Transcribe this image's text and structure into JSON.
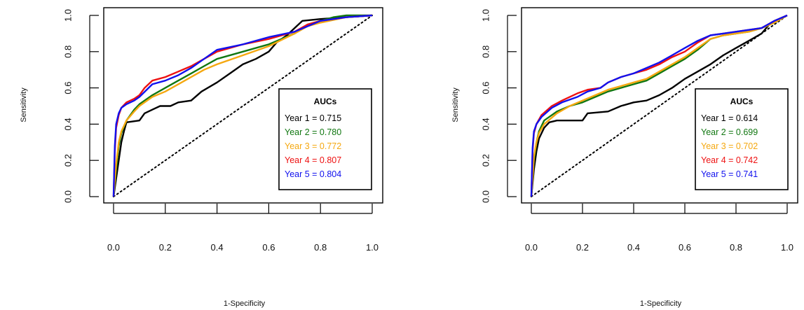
{
  "chart_data": [
    {
      "type": "line",
      "xlabel": "1-Specificity",
      "ylabel": "Sensitivity",
      "xlim": [
        0,
        1
      ],
      "ylim": [
        0,
        1
      ],
      "x_ticks": [
        "0.0",
        "0.2",
        "0.4",
        "0.6",
        "0.8",
        "1.0"
      ],
      "y_ticks": [
        "0.0",
        "0.2",
        "0.4",
        "0.6",
        "0.8",
        "1.0"
      ],
      "legend": {
        "title": "AUCs",
        "placement": "right-center"
      },
      "reference_line": {
        "style": "dotted",
        "color": "#000000",
        "points": [
          [
            0,
            0
          ],
          [
            1,
            1
          ]
        ]
      },
      "series": [
        {
          "name": "Year 1 = 0.715",
          "color": "#000000",
          "points": [
            [
              0,
              0
            ],
            [
              0.01,
              0.1
            ],
            [
              0.02,
              0.2
            ],
            [
              0.03,
              0.3
            ],
            [
              0.04,
              0.36
            ],
            [
              0.05,
              0.41
            ],
            [
              0.1,
              0.42
            ],
            [
              0.12,
              0.46
            ],
            [
              0.15,
              0.48
            ],
            [
              0.18,
              0.5
            ],
            [
              0.22,
              0.5
            ],
            [
              0.25,
              0.52
            ],
            [
              0.3,
              0.53
            ],
            [
              0.34,
              0.58
            ],
            [
              0.4,
              0.63
            ],
            [
              0.45,
              0.68
            ],
            [
              0.5,
              0.73
            ],
            [
              0.55,
              0.76
            ],
            [
              0.6,
              0.8
            ],
            [
              0.63,
              0.85
            ],
            [
              0.67,
              0.89
            ],
            [
              0.7,
              0.93
            ],
            [
              0.73,
              0.97
            ],
            [
              0.8,
              0.98
            ],
            [
              0.9,
              0.99
            ],
            [
              1,
              1
            ]
          ]
        },
        {
          "name": "Year 2 = 0.780",
          "color": "#117711",
          "points": [
            [
              0,
              0
            ],
            [
              0.01,
              0.15
            ],
            [
              0.02,
              0.28
            ],
            [
              0.03,
              0.35
            ],
            [
              0.05,
              0.42
            ],
            [
              0.08,
              0.48
            ],
            [
              0.1,
              0.51
            ],
            [
              0.15,
              0.56
            ],
            [
              0.2,
              0.6
            ],
            [
              0.25,
              0.64
            ],
            [
              0.3,
              0.68
            ],
            [
              0.35,
              0.72
            ],
            [
              0.4,
              0.76
            ],
            [
              0.5,
              0.8
            ],
            [
              0.6,
              0.84
            ],
            [
              0.7,
              0.9
            ],
            [
              0.75,
              0.95
            ],
            [
              0.8,
              0.97
            ],
            [
              0.85,
              0.99
            ],
            [
              0.9,
              1
            ],
            [
              1,
              1
            ]
          ]
        },
        {
          "name": "Year 3 = 0.772",
          "color": "#F5A810",
          "points": [
            [
              0,
              0
            ],
            [
              0.01,
              0.18
            ],
            [
              0.02,
              0.3
            ],
            [
              0.03,
              0.36
            ],
            [
              0.05,
              0.42
            ],
            [
              0.08,
              0.47
            ],
            [
              0.1,
              0.5
            ],
            [
              0.15,
              0.55
            ],
            [
              0.2,
              0.58
            ],
            [
              0.25,
              0.62
            ],
            [
              0.3,
              0.66
            ],
            [
              0.35,
              0.7
            ],
            [
              0.4,
              0.73
            ],
            [
              0.5,
              0.78
            ],
            [
              0.6,
              0.83
            ],
            [
              0.7,
              0.9
            ],
            [
              0.75,
              0.94
            ],
            [
              0.8,
              0.96
            ],
            [
              0.9,
              0.99
            ],
            [
              1,
              1
            ]
          ]
        },
        {
          "name": "Year 4 = 0.807",
          "color": "#EE1111",
          "points": [
            [
              0,
              0
            ],
            [
              0.005,
              0.25
            ],
            [
              0.01,
              0.38
            ],
            [
              0.02,
              0.45
            ],
            [
              0.03,
              0.49
            ],
            [
              0.05,
              0.52
            ],
            [
              0.08,
              0.54
            ],
            [
              0.1,
              0.56
            ],
            [
              0.12,
              0.6
            ],
            [
              0.15,
              0.64
            ],
            [
              0.2,
              0.66
            ],
            [
              0.25,
              0.69
            ],
            [
              0.3,
              0.72
            ],
            [
              0.35,
              0.76
            ],
            [
              0.4,
              0.8
            ],
            [
              0.5,
              0.84
            ],
            [
              0.6,
              0.87
            ],
            [
              0.7,
              0.91
            ],
            [
              0.75,
              0.95
            ],
            [
              0.8,
              0.97
            ],
            [
              0.9,
              0.99
            ],
            [
              1,
              1
            ]
          ]
        },
        {
          "name": "Year 5 = 0.804",
          "color": "#1111EE",
          "points": [
            [
              0,
              0
            ],
            [
              0.005,
              0.28
            ],
            [
              0.01,
              0.4
            ],
            [
              0.02,
              0.46
            ],
            [
              0.03,
              0.49
            ],
            [
              0.05,
              0.51
            ],
            [
              0.08,
              0.53
            ],
            [
              0.1,
              0.55
            ],
            [
              0.15,
              0.62
            ],
            [
              0.2,
              0.64
            ],
            [
              0.25,
              0.67
            ],
            [
              0.3,
              0.71
            ],
            [
              0.35,
              0.76
            ],
            [
              0.4,
              0.81
            ],
            [
              0.5,
              0.84
            ],
            [
              0.6,
              0.88
            ],
            [
              0.7,
              0.91
            ],
            [
              0.75,
              0.94
            ],
            [
              0.8,
              0.97
            ],
            [
              0.9,
              0.99
            ],
            [
              1,
              1
            ]
          ]
        }
      ]
    },
    {
      "type": "line",
      "xlabel": "1-Specificity",
      "ylabel": "Sensitivity",
      "xlim": [
        0,
        1
      ],
      "ylim": [
        0,
        1
      ],
      "x_ticks": [
        "0.0",
        "0.2",
        "0.4",
        "0.6",
        "0.8",
        "1.0"
      ],
      "y_ticks": [
        "0.0",
        "0.2",
        "0.4",
        "0.6",
        "0.8",
        "1.0"
      ],
      "legend": {
        "title": "AUCs",
        "placement": "right-center"
      },
      "reference_line": {
        "style": "dotted",
        "color": "#000000",
        "points": [
          [
            0,
            0
          ],
          [
            1,
            1
          ]
        ]
      },
      "series": [
        {
          "name": "Year 1 = 0.614",
          "color": "#000000",
          "points": [
            [
              0,
              0
            ],
            [
              0.01,
              0.15
            ],
            [
              0.02,
              0.25
            ],
            [
              0.03,
              0.32
            ],
            [
              0.05,
              0.38
            ],
            [
              0.07,
              0.41
            ],
            [
              0.1,
              0.42
            ],
            [
              0.2,
              0.42
            ],
            [
              0.22,
              0.46
            ],
            [
              0.3,
              0.47
            ],
            [
              0.35,
              0.5
            ],
            [
              0.4,
              0.52
            ],
            [
              0.45,
              0.53
            ],
            [
              0.5,
              0.56
            ],
            [
              0.55,
              0.6
            ],
            [
              0.6,
              0.65
            ],
            [
              0.65,
              0.69
            ],
            [
              0.7,
              0.73
            ],
            [
              0.75,
              0.78
            ],
            [
              0.8,
              0.82
            ],
            [
              0.85,
              0.86
            ],
            [
              0.9,
              0.9
            ],
            [
              0.93,
              0.95
            ],
            [
              0.95,
              0.97
            ],
            [
              1,
              1
            ]
          ]
        },
        {
          "name": "Year 2 = 0.699",
          "color": "#117711",
          "points": [
            [
              0,
              0
            ],
            [
              0.01,
              0.2
            ],
            [
              0.02,
              0.3
            ],
            [
              0.03,
              0.36
            ],
            [
              0.05,
              0.42
            ],
            [
              0.1,
              0.47
            ],
            [
              0.15,
              0.5
            ],
            [
              0.2,
              0.52
            ],
            [
              0.25,
              0.55
            ],
            [
              0.3,
              0.58
            ],
            [
              0.35,
              0.6
            ],
            [
              0.4,
              0.62
            ],
            [
              0.45,
              0.64
            ],
            [
              0.5,
              0.68
            ],
            [
              0.55,
              0.72
            ],
            [
              0.6,
              0.76
            ],
            [
              0.65,
              0.81
            ],
            [
              0.7,
              0.87
            ],
            [
              0.75,
              0.89
            ],
            [
              0.8,
              0.9
            ],
            [
              0.85,
              0.91
            ],
            [
              0.9,
              0.93
            ],
            [
              0.95,
              0.96
            ],
            [
              1,
              1
            ]
          ]
        },
        {
          "name": "Year 3 = 0.702",
          "color": "#F5A810",
          "points": [
            [
              0,
              0
            ],
            [
              0.01,
              0.22
            ],
            [
              0.02,
              0.3
            ],
            [
              0.03,
              0.35
            ],
            [
              0.05,
              0.4
            ],
            [
              0.1,
              0.46
            ],
            [
              0.15,
              0.5
            ],
            [
              0.2,
              0.53
            ],
            [
              0.25,
              0.56
            ],
            [
              0.3,
              0.59
            ],
            [
              0.35,
              0.61
            ],
            [
              0.4,
              0.63
            ],
            [
              0.45,
              0.65
            ],
            [
              0.5,
              0.69
            ],
            [
              0.55,
              0.73
            ],
            [
              0.6,
              0.77
            ],
            [
              0.65,
              0.82
            ],
            [
              0.7,
              0.87
            ],
            [
              0.75,
              0.89
            ],
            [
              0.8,
              0.9
            ],
            [
              0.85,
              0.91
            ],
            [
              0.9,
              0.93
            ],
            [
              0.95,
              0.96
            ],
            [
              1,
              1
            ]
          ]
        },
        {
          "name": "Year 4 = 0.742",
          "color": "#EE1111",
          "points": [
            [
              0,
              0
            ],
            [
              0.005,
              0.25
            ],
            [
              0.01,
              0.35
            ],
            [
              0.02,
              0.4
            ],
            [
              0.04,
              0.45
            ],
            [
              0.08,
              0.5
            ],
            [
              0.12,
              0.53
            ],
            [
              0.18,
              0.57
            ],
            [
              0.22,
              0.59
            ],
            [
              0.27,
              0.6
            ],
            [
              0.3,
              0.63
            ],
            [
              0.35,
              0.66
            ],
            [
              0.4,
              0.68
            ],
            [
              0.45,
              0.7
            ],
            [
              0.5,
              0.73
            ],
            [
              0.55,
              0.77
            ],
            [
              0.6,
              0.8
            ],
            [
              0.65,
              0.85
            ],
            [
              0.7,
              0.89
            ],
            [
              0.75,
              0.9
            ],
            [
              0.8,
              0.91
            ],
            [
              0.85,
              0.92
            ],
            [
              0.9,
              0.93
            ],
            [
              0.95,
              0.97
            ],
            [
              1,
              1
            ]
          ]
        },
        {
          "name": "Year 5 = 0.741",
          "color": "#1111EE",
          "points": [
            [
              0,
              0
            ],
            [
              0.005,
              0.27
            ],
            [
              0.01,
              0.36
            ],
            [
              0.02,
              0.4
            ],
            [
              0.04,
              0.44
            ],
            [
              0.08,
              0.49
            ],
            [
              0.12,
              0.52
            ],
            [
              0.18,
              0.55
            ],
            [
              0.22,
              0.58
            ],
            [
              0.27,
              0.6
            ],
            [
              0.3,
              0.63
            ],
            [
              0.35,
              0.66
            ],
            [
              0.4,
              0.68
            ],
            [
              0.45,
              0.71
            ],
            [
              0.5,
              0.74
            ],
            [
              0.55,
              0.78
            ],
            [
              0.6,
              0.82
            ],
            [
              0.65,
              0.86
            ],
            [
              0.7,
              0.89
            ],
            [
              0.75,
              0.9
            ],
            [
              0.8,
              0.91
            ],
            [
              0.85,
              0.92
            ],
            [
              0.9,
              0.93
            ],
            [
              0.95,
              0.97
            ],
            [
              1,
              1
            ]
          ]
        }
      ]
    }
  ]
}
